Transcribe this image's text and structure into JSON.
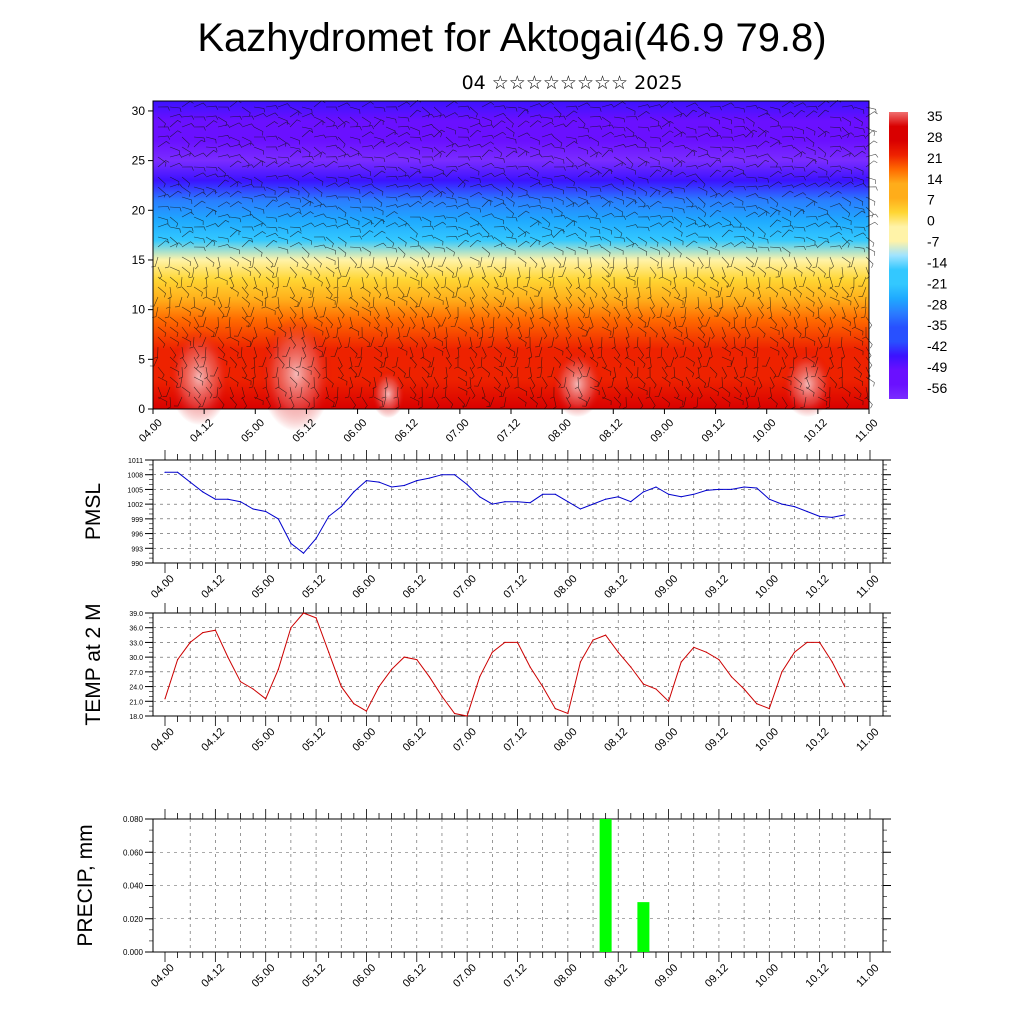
{
  "header": {
    "title": "Kazhydromet for Aktogai(46.9 79.8)",
    "subtitle": "04 ☆☆☆☆☆☆☆☆ 2025"
  },
  "chart_data": [
    {
      "type": "heatmap",
      "title": "Kazhydromet for Aktogai(46.9 79.8)",
      "description_vars": "temperature cross-section with wind barbs",
      "x_ticks": [
        "04.00",
        "04.12",
        "05.00",
        "05.12",
        "06.00",
        "06.12",
        "07.00",
        "07.12",
        "08.00",
        "08.12",
        "09.00",
        "09.12",
        "10.00",
        "10.12",
        "11.00"
      ],
      "y_ticks": [
        0,
        5,
        10,
        15,
        20,
        25,
        30
      ],
      "ylim": [
        0,
        31
      ],
      "colorbar_labels": [
        "35",
        "28",
        "21",
        "14",
        "7",
        "0",
        "-7",
        "-14",
        "-21",
        "-28",
        "-35",
        "-42",
        "-49",
        "-56"
      ],
      "colorbar_range": [
        -60,
        38
      ],
      "temperature_profile_by_height": [
        {
          "h": 0,
          "t": 33
        },
        {
          "h": 3,
          "t": 28
        },
        {
          "h": 6,
          "t": 24
        },
        {
          "h": 9,
          "t": 18
        },
        {
          "h": 11,
          "t": 13
        },
        {
          "h": 13,
          "t": 6
        },
        {
          "h": 15,
          "t": -6
        },
        {
          "h": 17,
          "t": -14
        },
        {
          "h": 19,
          "t": -24
        },
        {
          "h": 21,
          "t": -33
        },
        {
          "h": 23,
          "t": -42
        },
        {
          "h": 25,
          "t": -56
        },
        {
          "h": 27,
          "t": -50
        },
        {
          "h": 29,
          "t": -50
        },
        {
          "h": 31,
          "t": -48
        }
      ],
      "colors": {
        "warm": "#e60000",
        "mid": "#ffd633",
        "cool": "#33ccff",
        "cold": "#3300ff",
        "top": "#8833ff"
      }
    },
    {
      "type": "line",
      "ylabel": "PMSL",
      "ylim": [
        990,
        1011
      ],
      "y_ticks": [
        "990",
        "993",
        "996",
        "999",
        "1002",
        "1005",
        "1008",
        "1011"
      ],
      "x_ticks": [
        "04.00",
        "04.12",
        "05.00",
        "05.12",
        "06.00",
        "06.12",
        "07.00",
        "07.12",
        "08.00",
        "08.12",
        "09.00",
        "09.12",
        "10.00",
        "10.12",
        "11.00"
      ],
      "color": "#0000cc",
      "x": [
        0,
        3,
        6,
        9,
        12,
        15,
        18,
        21,
        24,
        27,
        30,
        33,
        36,
        39,
        42,
        45,
        48,
        51,
        54,
        57,
        60,
        63,
        66,
        69,
        72,
        75,
        78,
        81,
        84,
        87,
        90,
        93,
        96,
        99,
        102,
        105,
        108,
        111,
        114,
        117,
        120,
        123,
        126,
        129,
        132,
        135,
        138,
        141,
        144,
        147,
        150,
        153,
        156,
        159,
        162
      ],
      "values": [
        1008.5,
        1008.5,
        1006.5,
        1004.5,
        1003,
        1003,
        1002.5,
        1001,
        1000.5,
        999,
        994,
        992,
        995,
        999.5,
        1001.5,
        1004.5,
        1006.8,
        1006.5,
        1005.5,
        1005.8,
        1006.8,
        1007.3,
        1008,
        1008,
        1006,
        1003.5,
        1002,
        1002.5,
        1002.5,
        1002.3,
        1004,
        1004,
        1002.5,
        1001,
        1002,
        1003,
        1003.5,
        1002.5,
        1004.5,
        1005.5,
        1004,
        1003.5,
        1004,
        1004.8,
        1005,
        1005,
        1005.5,
        1005.3,
        1003,
        1002,
        1001.5,
        1000.5,
        999.5,
        999.3,
        999.8
      ],
      "plotted_range": [
        0,
        162
      ]
    },
    {
      "type": "line",
      "ylabel": "TEMP at 2 M",
      "ylim": [
        18,
        39
      ],
      "y_ticks": [
        "18.0",
        "21.0",
        "24.0",
        "27.0",
        "30.0",
        "33.0",
        "36.0",
        "39.0"
      ],
      "x_ticks": [
        "04.00",
        "04.12",
        "05.00",
        "05.12",
        "06.00",
        "06.12",
        "07.00",
        "07.12",
        "08.00",
        "08.12",
        "09.00",
        "09.12",
        "10.00",
        "10.12",
        "11.00"
      ],
      "color": "#cc0000",
      "x": [
        0,
        3,
        6,
        9,
        12,
        15,
        18,
        21,
        24,
        27,
        30,
        33,
        36,
        39,
        42,
        45,
        48,
        51,
        54,
        57,
        60,
        63,
        66,
        69,
        72,
        75,
        78,
        81,
        84,
        87,
        90,
        93,
        96,
        99,
        102,
        105,
        108,
        111,
        114,
        117,
        120,
        123,
        126,
        129,
        132,
        135,
        138,
        141,
        144,
        147,
        150,
        153,
        156,
        159,
        162
      ],
      "values": [
        21.5,
        29.5,
        33,
        35,
        35.5,
        30,
        25,
        23.5,
        21.5,
        27.5,
        36,
        39,
        38,
        31,
        24,
        20.5,
        19,
        24,
        27.5,
        30,
        29.5,
        26,
        22,
        18.5,
        18,
        26,
        31,
        33,
        33,
        28,
        24,
        19.5,
        18.5,
        29,
        33.5,
        34.5,
        31,
        28,
        24.5,
        23.5,
        21,
        29,
        32,
        31,
        29.5,
        26,
        23.5,
        20.5,
        19.5,
        27,
        31,
        33,
        33,
        29,
        24
      ],
      "plotted_range": [
        0,
        162
      ]
    },
    {
      "type": "bar",
      "ylabel": "PRECIP, mm",
      "ylim": [
        0,
        0.08
      ],
      "y_ticks": [
        "0.000",
        "0.020",
        "0.040",
        "0.060",
        "0.080"
      ],
      "x_ticks": [
        "04.00",
        "04.12",
        "05.00",
        "05.12",
        "06.00",
        "06.12",
        "07.00",
        "07.12",
        "08.00",
        "08.12",
        "09.00",
        "09.12",
        "10.00",
        "10.12",
        "11.00"
      ],
      "color": "#00ff00",
      "bars": [
        {
          "x": 105,
          "value": 0.08
        },
        {
          "x": 114,
          "value": 0.03
        }
      ]
    }
  ]
}
